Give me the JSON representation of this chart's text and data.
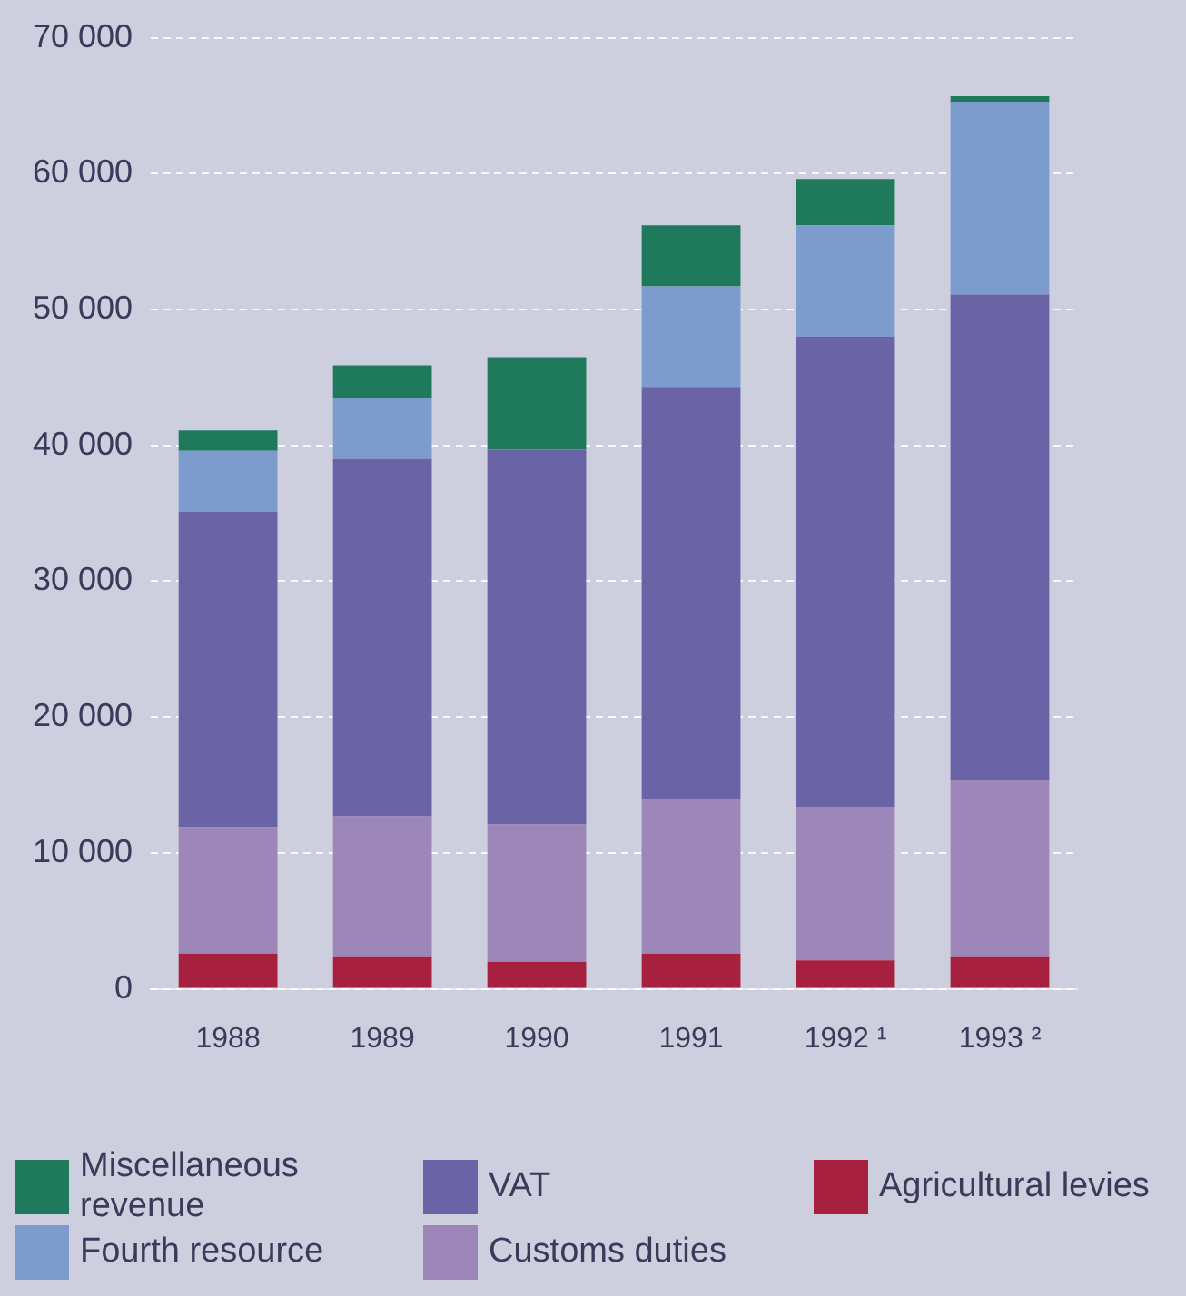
{
  "chart_data": {
    "type": "bar",
    "stacked": true,
    "categories": [
      "1988",
      "1989",
      "1990",
      "1991",
      "1992 ¹",
      "1993 ²"
    ],
    "series": [
      {
        "name": "Agricultural levies",
        "color": "#a8203f",
        "values": [
          2600,
          2400,
          2000,
          2600,
          2100,
          2400
        ]
      },
      {
        "name": "Customs duties",
        "color": "#9d86b8",
        "values": [
          9300,
          10300,
          10100,
          11400,
          11300,
          13000
        ]
      },
      {
        "name": "VAT",
        "color": "#6a64a6",
        "values": [
          23200,
          26300,
          27600,
          30300,
          34600,
          35700
        ]
      },
      {
        "name": "Fourth resource",
        "color": "#7b9ccc",
        "values": [
          4500,
          4500,
          0,
          7400,
          8200,
          14200
        ]
      },
      {
        "name": "Miscellaneous revenue",
        "color": "#1e7a5a",
        "values": [
          1500,
          2400,
          6800,
          4500,
          3400,
          400
        ]
      }
    ],
    "ylim": [
      0,
      70000
    ],
    "yticks": [
      {
        "value": 0,
        "label": "0"
      },
      {
        "value": 10000,
        "label": "10 000"
      },
      {
        "value": 20000,
        "label": "20 000"
      },
      {
        "value": 30000,
        "label": "30 000"
      },
      {
        "value": 40000,
        "label": "40 000"
      },
      {
        "value": 50000,
        "label": "50 000"
      },
      {
        "value": 60000,
        "label": "60 000"
      },
      {
        "value": 70000,
        "label": "70 000"
      }
    ],
    "grid": "y",
    "legend": "bottom"
  }
}
